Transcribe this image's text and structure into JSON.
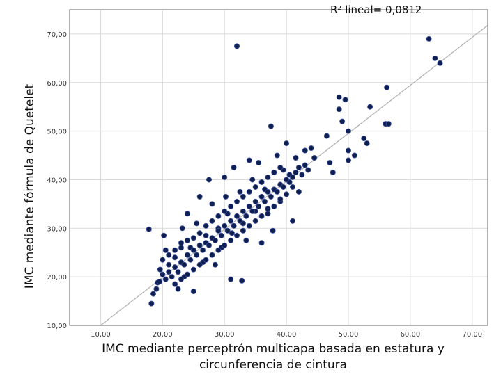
{
  "chart_data": {
    "type": "scatter",
    "title": "",
    "annotation": "R² lineal= 0,0812",
    "xlabel_lines": [
      "IMC mediante perceptrón multicapa basada en estatura y",
      "circunferencia de cintura"
    ],
    "ylabel": "IMC mediante fórmula de Quetelet",
    "xlim": [
      5.0,
      72.5
    ],
    "ylim": [
      10.0,
      75.0
    ],
    "x_ticks": [
      "10,00",
      "20,00",
      "30,00",
      "40,00",
      "50,00",
      "60,00",
      "70,00"
    ],
    "y_ticks": [
      "10,00",
      "20,00",
      "30,00",
      "40,00",
      "50,00",
      "60,00",
      "70,00"
    ],
    "x_tick_values": [
      10,
      20,
      30,
      40,
      50,
      60,
      70
    ],
    "y_tick_values": [
      10,
      20,
      30,
      40,
      50,
      60,
      70
    ],
    "grid": true,
    "fit_line": {
      "x": [
        10.0,
        72.5
      ],
      "y": [
        10.0,
        71.8
      ]
    },
    "point_color": "#0f1f4f",
    "points": [
      [
        17.8,
        29.8
      ],
      [
        18.2,
        14.5
      ],
      [
        18.5,
        16.5
      ],
      [
        19.0,
        17.5
      ],
      [
        19.2,
        18.8
      ],
      [
        19.6,
        21.5
      ],
      [
        20.2,
        28.5
      ],
      [
        20.5,
        25.5
      ],
      [
        21.0,
        22.5
      ],
      [
        22.0,
        24.0
      ],
      [
        22.5,
        17.5
      ],
      [
        23.0,
        27.0
      ],
      [
        23.2,
        30.0
      ],
      [
        23.5,
        20.0
      ],
      [
        24.0,
        33.0
      ],
      [
        24.5,
        26.0
      ],
      [
        25.0,
        17.0
      ],
      [
        25.5,
        31.0
      ],
      [
        26.0,
        36.5
      ],
      [
        26.5,
        23.0
      ],
      [
        27.0,
        28.5
      ],
      [
        27.5,
        40.0
      ],
      [
        28.0,
        35.0
      ],
      [
        28.5,
        22.5
      ],
      [
        29.0,
        30.0
      ],
      [
        29.5,
        26.0
      ],
      [
        30.0,
        40.5
      ],
      [
        30.2,
        36.5
      ],
      [
        30.5,
        33.0
      ],
      [
        31.0,
        19.5
      ],
      [
        31.2,
        29.0
      ],
      [
        31.5,
        42.5
      ],
      [
        32.0,
        67.5
      ],
      [
        32.5,
        37.5
      ],
      [
        32.8,
        19.2
      ],
      [
        33.0,
        31.0
      ],
      [
        33.5,
        27.5
      ],
      [
        34.0,
        44.0
      ],
      [
        34.5,
        40.0
      ],
      [
        35.0,
        33.5
      ],
      [
        35.5,
        43.5
      ],
      [
        36.0,
        27.0
      ],
      [
        36.5,
        38.0
      ],
      [
        37.0,
        34.0
      ],
      [
        37.5,
        51.0
      ],
      [
        37.8,
        29.5
      ],
      [
        38.0,
        41.5
      ],
      [
        38.5,
        45.0
      ],
      [
        39.0,
        35.5
      ],
      [
        39.5,
        42.0
      ],
      [
        40.0,
        47.5
      ],
      [
        40.5,
        39.5
      ],
      [
        41.0,
        31.5
      ],
      [
        41.5,
        44.5
      ],
      [
        42.0,
        37.5
      ],
      [
        43.0,
        46.0
      ],
      [
        43.5,
        42.0
      ],
      [
        44.0,
        46.5
      ],
      [
        44.5,
        44.5
      ],
      [
        46.5,
        49.0
      ],
      [
        47.0,
        43.5
      ],
      [
        47.5,
        41.5
      ],
      [
        48.5,
        54.5
      ],
      [
        48.5,
        57.0
      ],
      [
        49.0,
        52.0
      ],
      [
        49.5,
        56.5
      ],
      [
        50.0,
        50.0
      ],
      [
        50.0,
        46.0
      ],
      [
        50.0,
        44.0
      ],
      [
        51.0,
        45.0
      ],
      [
        52.5,
        48.5
      ],
      [
        53.0,
        47.5
      ],
      [
        53.5,
        55.0
      ],
      [
        56.0,
        51.5
      ],
      [
        56.5,
        51.5
      ],
      [
        56.2,
        59.0
      ],
      [
        63.0,
        69.0
      ],
      [
        64.0,
        65.0
      ],
      [
        64.8,
        64.0
      ],
      [
        19.5,
        19.0
      ],
      [
        20.0,
        20.5
      ],
      [
        20.5,
        19.5
      ],
      [
        21.0,
        21.0
      ],
      [
        21.5,
        20.0
      ],
      [
        22.0,
        22.0
      ],
      [
        22.5,
        21.0
      ],
      [
        23.0,
        23.0
      ],
      [
        23.5,
        22.5
      ],
      [
        24.0,
        24.5
      ],
      [
        24.5,
        23.5
      ],
      [
        25.0,
        25.5
      ],
      [
        25.5,
        24.5
      ],
      [
        26.0,
        26.5
      ],
      [
        26.5,
        25.5
      ],
      [
        27.0,
        27.0
      ],
      [
        27.5,
        26.5
      ],
      [
        28.0,
        28.0
      ],
      [
        28.5,
        27.5
      ],
      [
        29.0,
        29.5
      ],
      [
        29.5,
        28.5
      ],
      [
        30.0,
        30.5
      ],
      [
        30.5,
        29.5
      ],
      [
        31.0,
        31.5
      ],
      [
        31.5,
        30.5
      ],
      [
        32.0,
        32.5
      ],
      [
        32.5,
        31.5
      ],
      [
        33.0,
        33.5
      ],
      [
        33.5,
        32.5
      ],
      [
        34.0,
        34.5
      ],
      [
        34.5,
        33.5
      ],
      [
        35.0,
        35.5
      ],
      [
        35.5,
        34.5
      ],
      [
        36.0,
        36.5
      ],
      [
        36.5,
        35.5
      ],
      [
        37.0,
        37.5
      ],
      [
        37.5,
        36.5
      ],
      [
        38.0,
        38.0
      ],
      [
        38.5,
        37.5
      ],
      [
        39.0,
        39.0
      ],
      [
        39.5,
        38.5
      ],
      [
        40.0,
        40.0
      ],
      [
        40.5,
        41.0
      ],
      [
        41.0,
        40.5
      ],
      [
        41.5,
        41.5
      ],
      [
        42.0,
        42.5
      ],
      [
        42.5,
        41.0
      ],
      [
        43.0,
        43.0
      ],
      [
        20.0,
        23.5
      ],
      [
        21.0,
        24.5
      ],
      [
        22.0,
        25.5
      ],
      [
        23.0,
        26.0
      ],
      [
        24.0,
        27.5
      ],
      [
        25.0,
        28.0
      ],
      [
        26.0,
        29.0
      ],
      [
        27.0,
        30.5
      ],
      [
        28.0,
        31.5
      ],
      [
        29.0,
        32.5
      ],
      [
        30.0,
        33.5
      ],
      [
        31.0,
        34.5
      ],
      [
        32.0,
        35.5
      ],
      [
        33.0,
        36.5
      ],
      [
        34.0,
        37.5
      ],
      [
        35.0,
        38.5
      ],
      [
        36.0,
        39.5
      ],
      [
        37.0,
        40.5
      ],
      [
        38.0,
        41.5
      ],
      [
        39.0,
        42.5
      ],
      [
        22.0,
        18.5
      ],
      [
        23.0,
        19.5
      ],
      [
        24.0,
        20.5
      ],
      [
        25.0,
        21.5
      ],
      [
        26.0,
        22.5
      ],
      [
        27.0,
        23.5
      ],
      [
        28.0,
        24.5
      ],
      [
        29.0,
        25.5
      ],
      [
        30.0,
        26.5
      ],
      [
        31.0,
        27.5
      ],
      [
        32.0,
        28.5
      ],
      [
        33.0,
        29.5
      ],
      [
        34.0,
        30.5
      ],
      [
        35.0,
        31.5
      ],
      [
        36.0,
        32.5
      ],
      [
        37.0,
        33.0
      ],
      [
        38.0,
        34.5
      ],
      [
        39.0,
        36.0
      ],
      [
        40.0,
        37.0
      ],
      [
        41.0,
        38.5
      ]
    ]
  }
}
